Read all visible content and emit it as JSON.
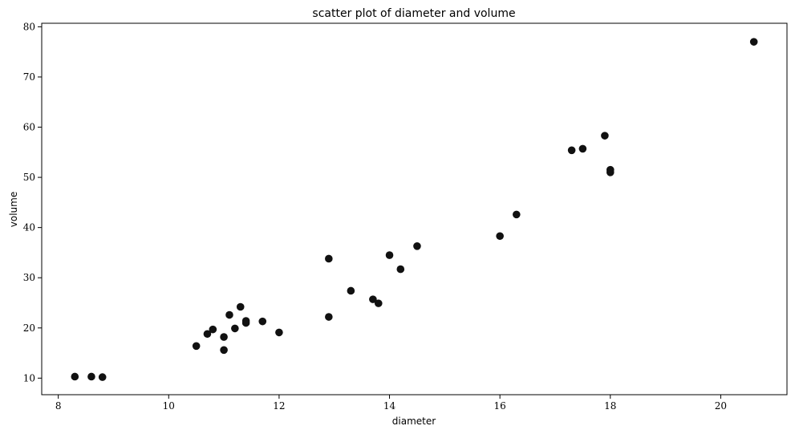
{
  "chart_data": {
    "type": "scatter",
    "title": "scatter plot of diameter and volume",
    "xlabel": "diameter",
    "ylabel": "volume",
    "xlim": [
      7.7,
      21.2
    ],
    "ylim": [
      6.7,
      80.7
    ],
    "x_ticks": [
      8,
      10,
      12,
      14,
      16,
      18,
      20
    ],
    "y_ticks": [
      10,
      20,
      30,
      40,
      50,
      60,
      70,
      80
    ],
    "grid": false,
    "marker_color": "#111111",
    "points": [
      {
        "x": 8.3,
        "y": 10.3
      },
      {
        "x": 8.6,
        "y": 10.3
      },
      {
        "x": 8.8,
        "y": 10.2
      },
      {
        "x": 10.5,
        "y": 16.4
      },
      {
        "x": 10.7,
        "y": 18.8
      },
      {
        "x": 10.8,
        "y": 19.7
      },
      {
        "x": 11.0,
        "y": 15.6
      },
      {
        "x": 11.0,
        "y": 18.2
      },
      {
        "x": 11.1,
        "y": 22.6
      },
      {
        "x": 11.2,
        "y": 19.9
      },
      {
        "x": 11.3,
        "y": 24.2
      },
      {
        "x": 11.4,
        "y": 21.0
      },
      {
        "x": 11.4,
        "y": 21.4
      },
      {
        "x": 11.7,
        "y": 21.3
      },
      {
        "x": 12.0,
        "y": 19.1
      },
      {
        "x": 12.9,
        "y": 22.2
      },
      {
        "x": 12.9,
        "y": 33.8
      },
      {
        "x": 13.3,
        "y": 27.4
      },
      {
        "x": 13.7,
        "y": 25.7
      },
      {
        "x": 13.8,
        "y": 24.9
      },
      {
        "x": 14.0,
        "y": 34.5
      },
      {
        "x": 14.2,
        "y": 31.7
      },
      {
        "x": 14.5,
        "y": 36.3
      },
      {
        "x": 16.0,
        "y": 38.3
      },
      {
        "x": 16.3,
        "y": 42.6
      },
      {
        "x": 17.3,
        "y": 55.4
      },
      {
        "x": 17.5,
        "y": 55.7
      },
      {
        "x": 17.9,
        "y": 58.3
      },
      {
        "x": 18.0,
        "y": 51.5
      },
      {
        "x": 18.0,
        "y": 51.0
      },
      {
        "x": 20.6,
        "y": 77.0
      }
    ]
  }
}
